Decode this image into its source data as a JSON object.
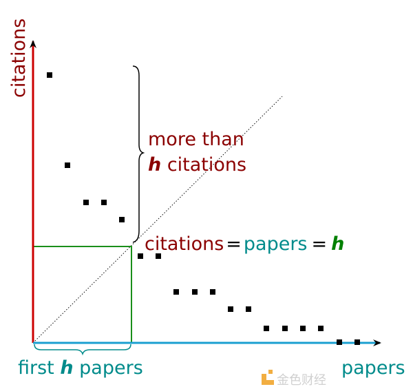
{
  "labels": {
    "y_axis": "citations",
    "x_axis": "papers",
    "brace_line1": "more than",
    "brace_h": "h",
    "brace_line2_rest": " citations",
    "eq_citations": "citations",
    "eq_equals": "=",
    "eq_papers": "papers",
    "eq_h": "h",
    "first": "first ",
    "first_h": "h",
    "first_papers": " papers"
  },
  "watermark": "金色财经",
  "colors": {
    "citations": "#8b0000",
    "papers": "#008b8b",
    "h": "#008000",
    "y_axis": "#cc0000",
    "x_axis": "#1a9fd0",
    "box": "#1a8f1a",
    "points": "#000000",
    "watermark": "#f0a020"
  }
}
